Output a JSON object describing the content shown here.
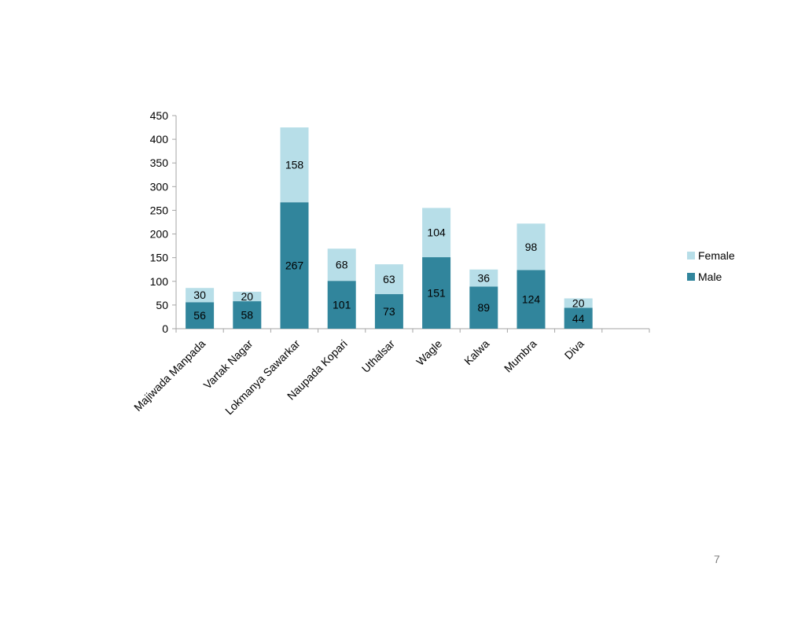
{
  "page": {
    "number": "7"
  },
  "chart_data": {
    "type": "bar",
    "stacked": true,
    "categories": [
      "Majiwada Manpada",
      "Vartak Nagar",
      "Lokmanya Sawarkar",
      "Naupada Kopari",
      "Uthalsar",
      "Wagle",
      "Kalwa",
      "Mumbra",
      "Diva"
    ],
    "series": [
      {
        "name": "Male",
        "values": [
          56,
          58,
          267,
          101,
          73,
          151,
          89,
          124,
          44
        ],
        "color": "#31859C"
      },
      {
        "name": "Female",
        "values": [
          30,
          20,
          158,
          68,
          63,
          104,
          36,
          98,
          20
        ],
        "color": "#B7DEE8"
      }
    ],
    "ylim": [
      0,
      450
    ],
    "yticks": [
      0,
      50,
      100,
      150,
      200,
      250,
      300,
      350,
      400,
      450
    ],
    "grid": false,
    "legend": {
      "position": "right",
      "entries": [
        "Female",
        "Male"
      ]
    },
    "data_labels": true
  }
}
